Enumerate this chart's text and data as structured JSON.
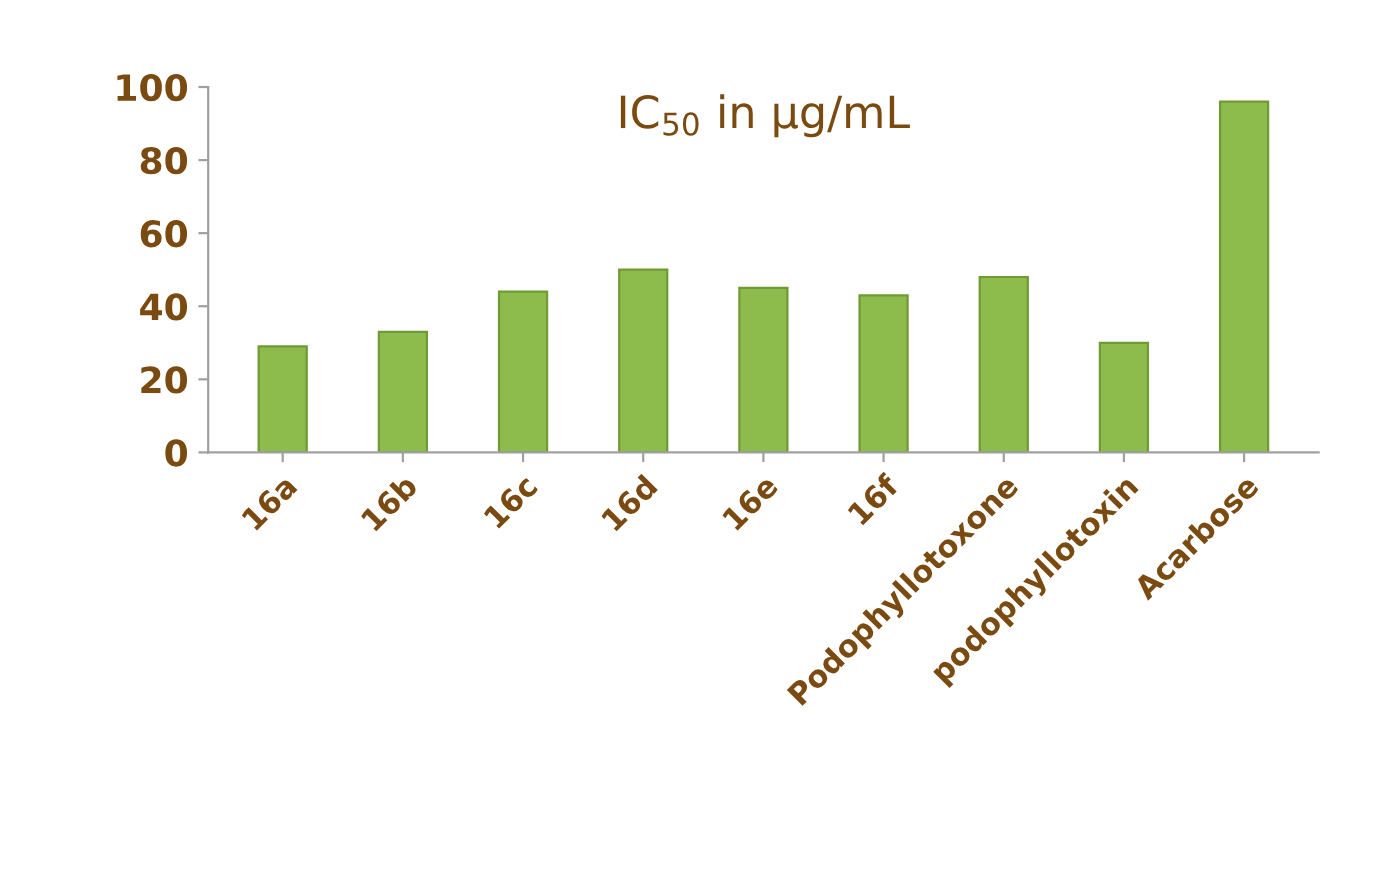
{
  "chart_data": {
    "type": "bar",
    "title": "IC$_{50}$ in µg/mL",
    "categories": [
      "16a",
      "16b",
      "16c",
      "16d",
      "16e",
      "16f",
      "Podophyllotoxone",
      "podophyllotoxin",
      "Acarbose"
    ],
    "values": [
      29,
      33,
      44,
      50,
      45,
      43,
      48,
      30,
      96
    ],
    "color": "#8dbb4c",
    "ylim": [
      0,
      100
    ],
    "yticks": [
      0,
      20,
      40,
      60,
      80,
      100
    ],
    "grid": false,
    "legend": false
  }
}
